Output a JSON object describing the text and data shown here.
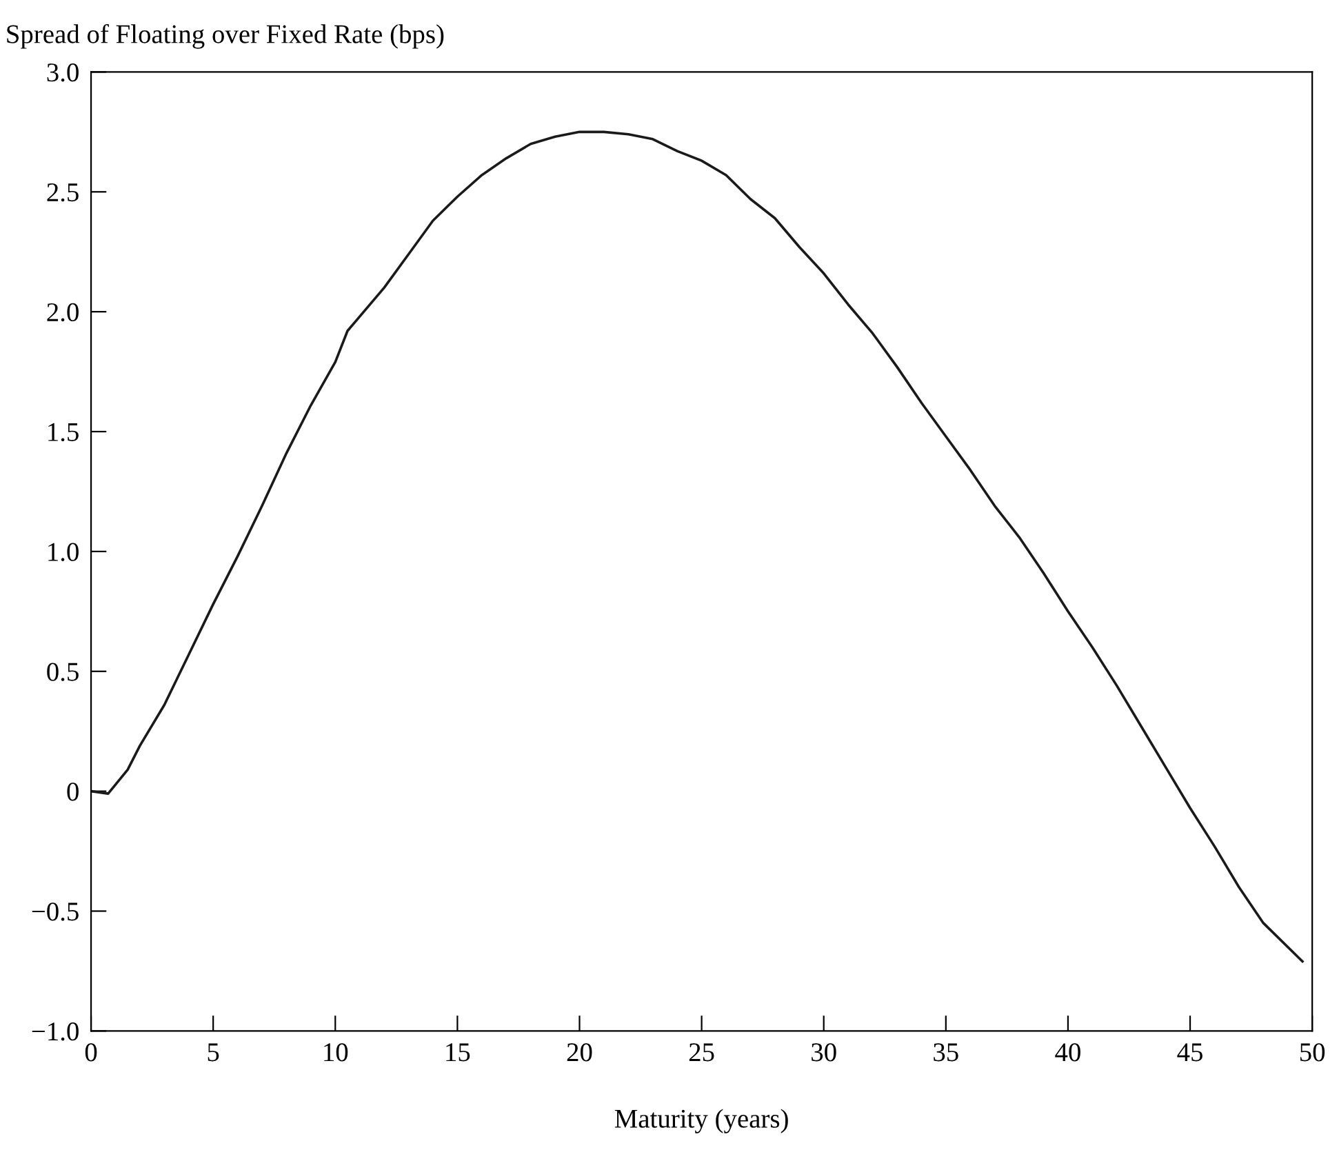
{
  "chart_data": {
    "type": "line",
    "ylabel": "Spread of Floating over Fixed Rate (bps)",
    "xlabel": "Maturity (years)",
    "x": [
      0,
      0.7,
      1.5,
      2,
      3,
      4,
      5,
      6,
      7,
      8,
      9,
      10,
      10.5,
      12,
      13,
      14,
      15,
      16,
      17,
      18,
      19,
      20,
      21,
      22,
      23,
      24,
      25,
      26,
      27,
      28,
      29,
      30,
      31,
      32,
      33,
      34,
      35,
      36,
      37,
      38,
      39,
      40,
      41,
      42,
      43,
      44,
      45,
      46,
      47,
      48,
      49.6
    ],
    "series": [
      {
        "color": "#1a1a1a",
        "values": [
          0,
          -0.01,
          0.09,
          0.19,
          0.36,
          0.57,
          0.78,
          0.98,
          1.19,
          1.41,
          1.61,
          1.79,
          1.92,
          2.1,
          2.24,
          2.38,
          2.48,
          2.57,
          2.64,
          2.7,
          2.73,
          2.75,
          2.75,
          2.74,
          2.72,
          2.67,
          2.63,
          2.57,
          2.47,
          2.39,
          2.27,
          2.16,
          2.03,
          1.91,
          1.77,
          1.62,
          1.48,
          1.34,
          1.19,
          1.06,
          0.91,
          0.75,
          0.6,
          0.44,
          0.27,
          0.1,
          -0.07,
          -0.23,
          -0.4,
          -0.55,
          -0.71
        ]
      }
    ],
    "xlim": [
      0,
      50
    ],
    "xticks": [
      0,
      5,
      10,
      15,
      20,
      25,
      30,
      35,
      40,
      45,
      50
    ],
    "ylim": [
      -1.0,
      3.0
    ],
    "yticks": [
      {
        "value": -1.0,
        "label": "−1.0"
      },
      {
        "value": -0.5,
        "label": "−0.5"
      },
      0,
      0.5,
      {
        "value": 1.0,
        "label": "1.0"
      },
      1.5,
      {
        "value": 2.0,
        "label": "2.0"
      },
      2.5,
      {
        "value": 3.0,
        "label": "3.0"
      }
    ],
    "grid": false,
    "legend": false,
    "line_style": "solid",
    "marker": "none"
  }
}
